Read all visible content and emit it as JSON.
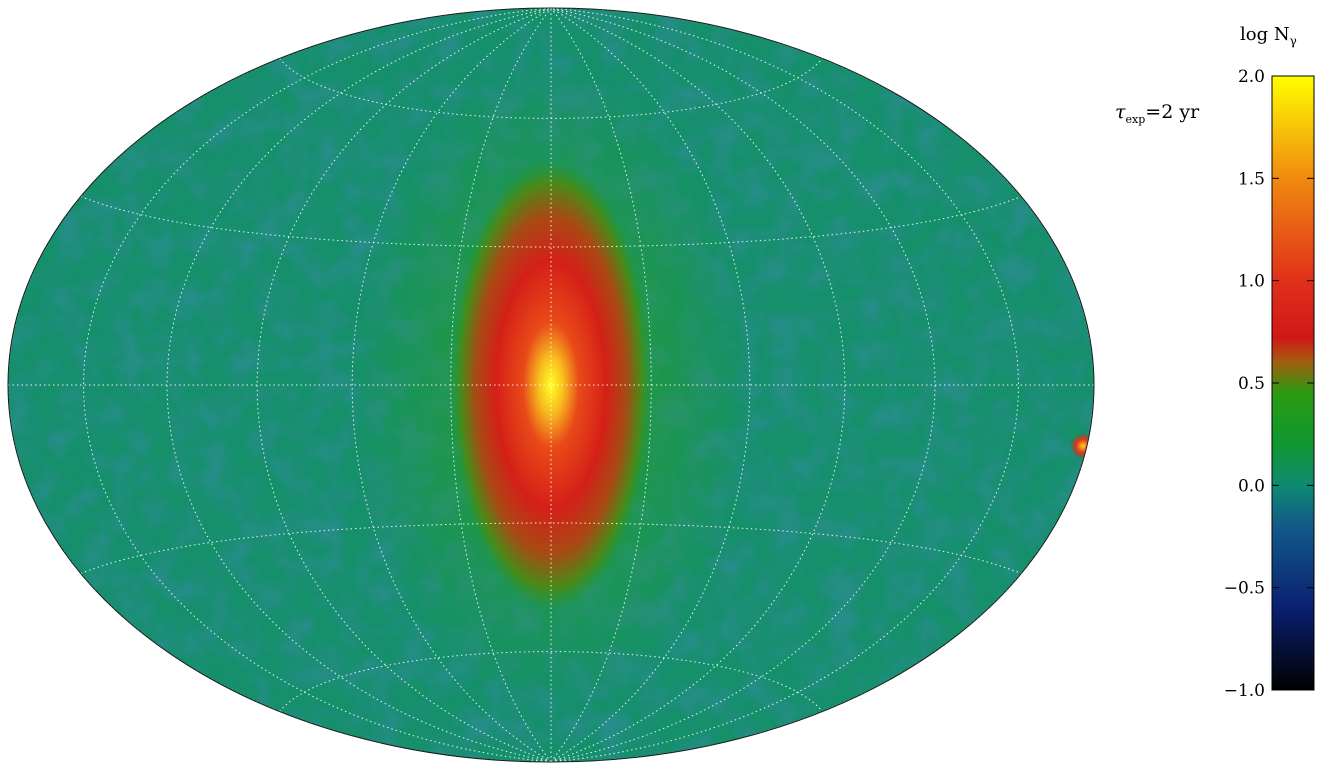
{
  "chart_data": {
    "type": "heatmap",
    "projection": "aitoff-hammer",
    "annotation": {
      "tau_symbol": "τ",
      "tau_subscript": "exp",
      "tau_text": "=2 yr"
    },
    "colorbar": {
      "title_prefix": "log N",
      "title_subscript": "γ",
      "range": [
        -1.0,
        2.0
      ],
      "ticks": [
        {
          "value": -1.0,
          "label": "−1.0"
        },
        {
          "value": -0.5,
          "label": "−0.5"
        },
        {
          "value": 0.0,
          "label": "0.0"
        },
        {
          "value": 0.5,
          "label": "0.5"
        },
        {
          "value": 1.0,
          "label": "1.0"
        },
        {
          "value": 1.5,
          "label": "1.5"
        },
        {
          "value": 2.0,
          "label": "2.0"
        }
      ],
      "stops": [
        {
          "value": -1.0,
          "color": "#000000"
        },
        {
          "value": -0.6,
          "color": "#0a2070"
        },
        {
          "value": -0.2,
          "color": "#125a88"
        },
        {
          "value": 0.0,
          "color": "#0e8a72"
        },
        {
          "value": 0.2,
          "color": "#0f9830"
        },
        {
          "value": 0.45,
          "color": "#2a9a12"
        },
        {
          "value": 0.6,
          "color": "#a06010"
        },
        {
          "value": 0.72,
          "color": "#d01818"
        },
        {
          "value": 1.0,
          "color": "#e0301a"
        },
        {
          "value": 1.5,
          "color": "#f08a10"
        },
        {
          "value": 2.0,
          "color": "#ffff00"
        }
      ]
    },
    "map": {
      "background_level": 0.15,
      "peak_level": 2.0,
      "source_at_edge": "bright point source at lower right limb"
    },
    "grid": true
  }
}
